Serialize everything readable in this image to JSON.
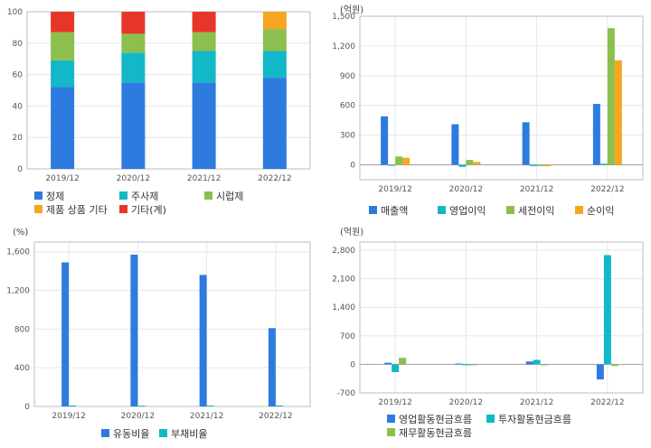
{
  "chart_data": [
    {
      "id": "composition",
      "type": "bar",
      "stacked": true,
      "unit_label": "",
      "categories": [
        "2019/12",
        "2020/12",
        "2021/12",
        "2022/12"
      ],
      "ylim": [
        0,
        100
      ],
      "yticks": [
        "0",
        "20",
        "40",
        "60",
        "80",
        "100"
      ],
      "ytick_values": [
        0,
        20,
        40,
        60,
        80,
        100
      ],
      "series": [
        {
          "name": "정제",
          "color": "#2e7be0",
          "values": [
            52,
            55,
            55,
            58
          ]
        },
        {
          "name": "주사제",
          "color": "#13b8c8",
          "values": [
            17,
            19,
            20,
            17
          ]
        },
        {
          "name": "시럽제",
          "color": "#8cbf4e",
          "values": [
            18,
            12,
            12,
            14
          ]
        },
        {
          "name": "제품 상품 기타",
          "color": "#f5a623",
          "values": [
            0,
            0,
            0,
            11
          ]
        },
        {
          "name": "기타(계)",
          "color": "#e8352a",
          "values": [
            13,
            14,
            13,
            0
          ]
        }
      ],
      "legend_rows": [
        [
          "정제",
          "주사제",
          "시럽제"
        ],
        [
          "제품 상품 기타",
          "기타(계)"
        ]
      ]
    },
    {
      "id": "income",
      "type": "bar",
      "unit_label": "(억원)",
      "categories": [
        "2019/12",
        "2020/12",
        "2021/12",
        "2022/12"
      ],
      "ylim": [
        -150,
        1500
      ],
      "yticks": [
        "0",
        "300",
        "600",
        "900",
        "1,200",
        "1,500"
      ],
      "ytick_values": [
        0,
        300,
        600,
        900,
        1200,
        1500
      ],
      "series": [
        {
          "name": "매출액",
          "color": "#2e7be0",
          "values": [
            490,
            410,
            430,
            615
          ]
        },
        {
          "name": "영업이익",
          "color": "#13b8c8",
          "values": [
            -8,
            -20,
            -12,
            12
          ]
        },
        {
          "name": "세전이익",
          "color": "#8cbf4e",
          "values": [
            85,
            50,
            -12,
            1380
          ]
        },
        {
          "name": "순이익",
          "color": "#f5a623",
          "values": [
            72,
            30,
            -14,
            1055
          ]
        }
      ],
      "legend_rows": [
        [
          "매출액",
          "영업이익",
          "세전이익",
          "순이익"
        ]
      ]
    },
    {
      "id": "ratios",
      "type": "bar",
      "unit_label": "(%)",
      "categories": [
        "2019/12",
        "2020/12",
        "2021/12",
        "2022/12"
      ],
      "ylim": [
        0,
        1700
      ],
      "yticks": [
        "0",
        "400",
        "800",
        "1,200",
        "1,600"
      ],
      "ytick_values": [
        0,
        400,
        800,
        1200,
        1600
      ],
      "series": [
        {
          "name": "유동비율",
          "color": "#2e7be0",
          "values": [
            1490,
            1570,
            1360,
            810
          ]
        },
        {
          "name": "부채비율",
          "color": "#13b8c8",
          "values": [
            10,
            8,
            9,
            10
          ]
        }
      ],
      "legend_rows": [
        [
          "유동비율",
          "부채비율"
        ]
      ]
    },
    {
      "id": "cashflow",
      "type": "bar",
      "unit_label": "(억원)",
      "categories": [
        "2019/12",
        "2020/12",
        "2021/12",
        "2022/12"
      ],
      "ylim": [
        -700,
        3000
      ],
      "yticks": [
        "-700",
        "0",
        "700",
        "1,400",
        "2,100",
        "2,800"
      ],
      "ytick_values": [
        -700,
        0,
        700,
        1400,
        2100,
        2800
      ],
      "series": [
        {
          "name": "영업활동현금흐름",
          "color": "#2e7be0",
          "values": [
            40,
            20,
            70,
            -370
          ]
        },
        {
          "name": "투자활동현금흐름",
          "color": "#13b8c8",
          "values": [
            -190,
            -8,
            110,
            2680
          ]
        },
        {
          "name": "재무활동현금흐름",
          "color": "#8cbf4e",
          "values": [
            160,
            -6,
            -8,
            -40
          ]
        }
      ],
      "legend_rows": [
        [
          "영업활동현금흐름",
          "투자활동현금흐름"
        ],
        [
          "재무활동현금흐름"
        ]
      ]
    }
  ]
}
